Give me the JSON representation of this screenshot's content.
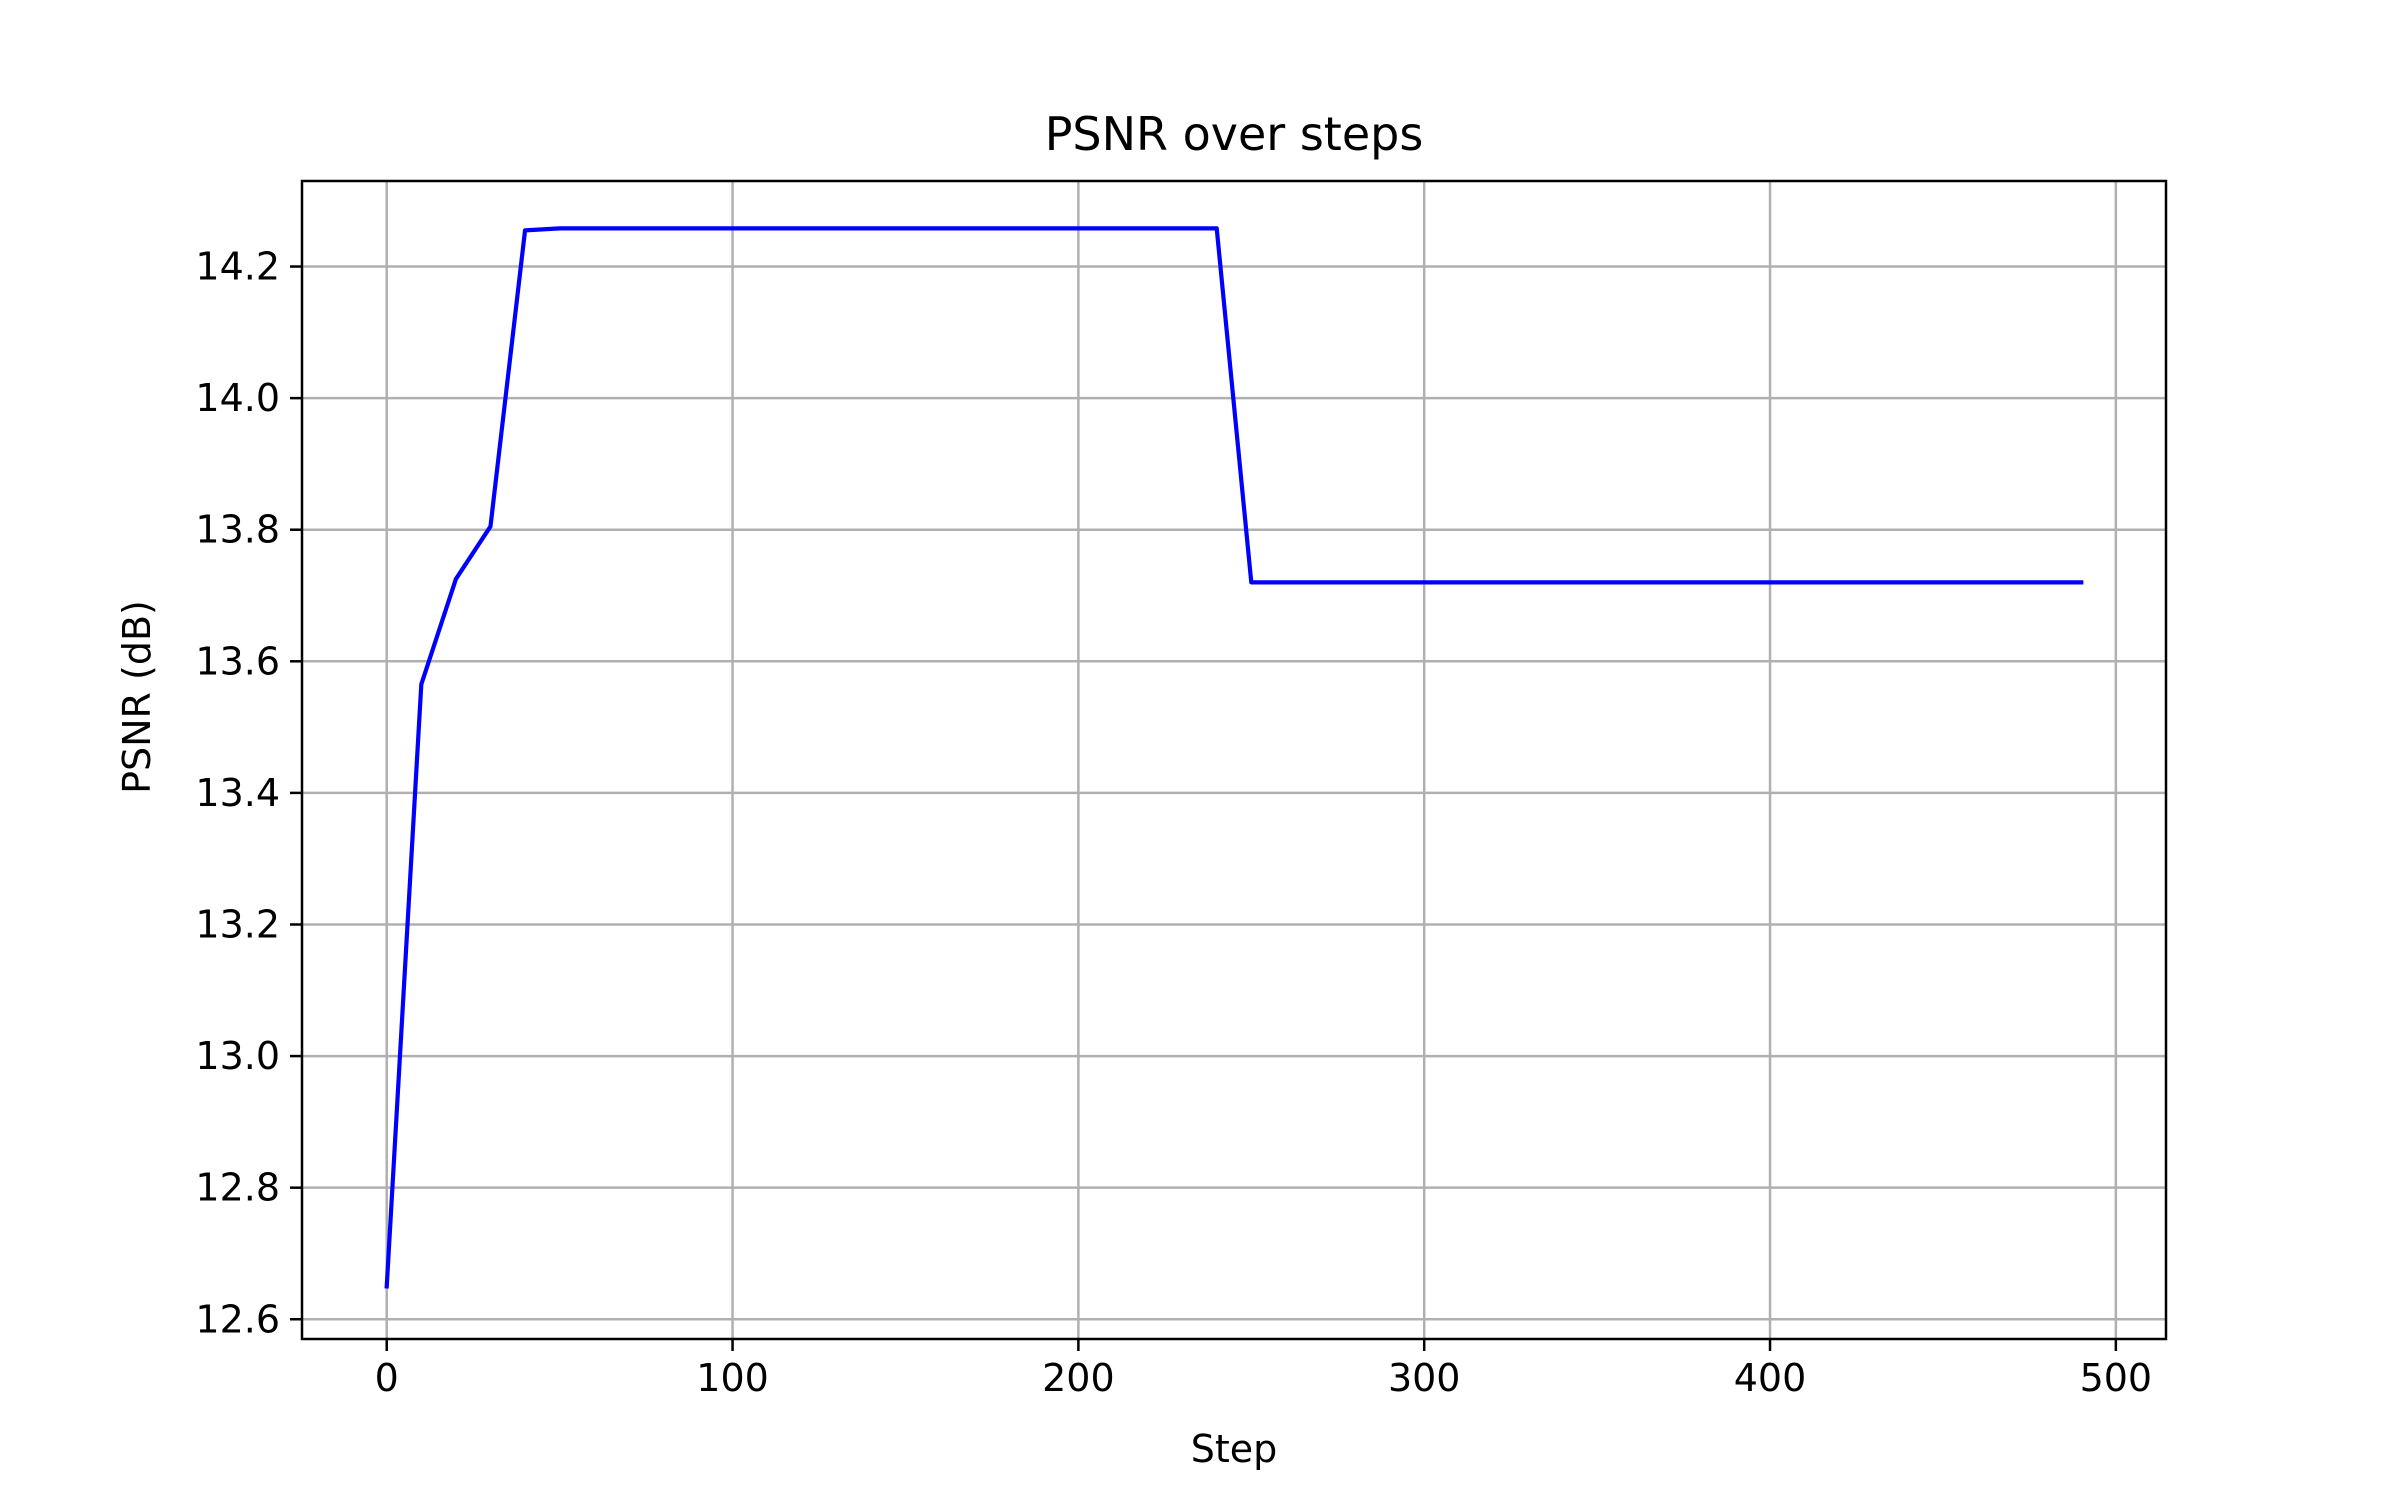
{
  "chart_data": {
    "type": "line",
    "title": "PSNR over steps",
    "xlabel": "Step",
    "ylabel": "PSNR (dB)",
    "xlim": [
      -24.5,
      514.5
    ],
    "ylim": [
      12.57,
      14.33
    ],
    "xticks": [
      0,
      100,
      200,
      300,
      400,
      500
    ],
    "xtick_labels": [
      "0",
      "100",
      "200",
      "300",
      "400",
      "500"
    ],
    "yticks": [
      12.6,
      12.8,
      13.0,
      13.2,
      13.4,
      13.6,
      13.8,
      14.0,
      14.2
    ],
    "ytick_labels": [
      "12.6",
      "12.8",
      "13.0",
      "13.2",
      "13.4",
      "13.6",
      "13.8",
      "14.0",
      "14.2"
    ],
    "grid": true,
    "series": [
      {
        "color": "#0000ff",
        "x": [
          0,
          10,
          20,
          30,
          40,
          50,
          60,
          70,
          80,
          90,
          100,
          110,
          120,
          130,
          140,
          150,
          160,
          170,
          180,
          190,
          200,
          210,
          220,
          230,
          240,
          250,
          260,
          270,
          280,
          290,
          300,
          310,
          320,
          330,
          340,
          350,
          360,
          370,
          380,
          390,
          400,
          410,
          420,
          430,
          440,
          450,
          460,
          470,
          480,
          490
        ],
        "y": [
          12.65,
          13.565,
          13.725,
          13.805,
          14.255,
          14.258,
          14.258,
          14.258,
          14.258,
          14.258,
          14.258,
          14.258,
          14.258,
          14.258,
          14.258,
          14.258,
          14.258,
          14.258,
          14.258,
          14.258,
          14.258,
          14.258,
          14.258,
          14.258,
          14.258,
          13.72,
          13.72,
          13.72,
          13.72,
          13.72,
          13.72,
          13.72,
          13.72,
          13.72,
          13.72,
          13.72,
          13.72,
          13.72,
          13.72,
          13.72,
          13.72,
          13.72,
          13.72,
          13.72,
          13.72,
          13.72,
          13.72,
          13.72,
          13.72,
          13.72
        ]
      }
    ],
    "colors": {
      "line": "#0000ff",
      "grid": "#b0b0b0",
      "axes": "#000000",
      "background": "#ffffff"
    }
  }
}
